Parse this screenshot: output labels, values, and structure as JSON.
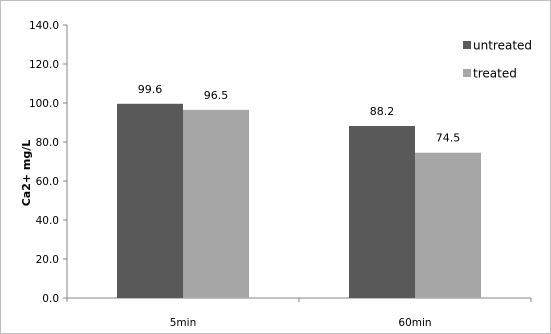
{
  "chart_data": {
    "type": "bar",
    "title": "",
    "xlabel": "",
    "ylabel": "Ca2+ mg/L",
    "categories": [
      "5min",
      "60min"
    ],
    "series": [
      {
        "name": "untreated",
        "values": [
          99.6,
          88.2
        ],
        "labels": [
          "99.6",
          "88.2"
        ],
        "color": "#595959"
      },
      {
        "name": "treated",
        "values": [
          96.5,
          74.5
        ],
        "labels": [
          "96.5",
          "74.5"
        ],
        "color": "#a6a6a6"
      }
    ],
    "ylim": [
      0,
      140
    ],
    "yticks": [
      0,
      20,
      40,
      60,
      80,
      100,
      120,
      140
    ],
    "ytick_labels": [
      "0.0",
      "20.0",
      "40.0",
      "60.0",
      "80.0",
      "100.0",
      "120.0",
      "140.0"
    ],
    "grid": false,
    "legend_position": "top-right",
    "axis_color": "#868686"
  }
}
